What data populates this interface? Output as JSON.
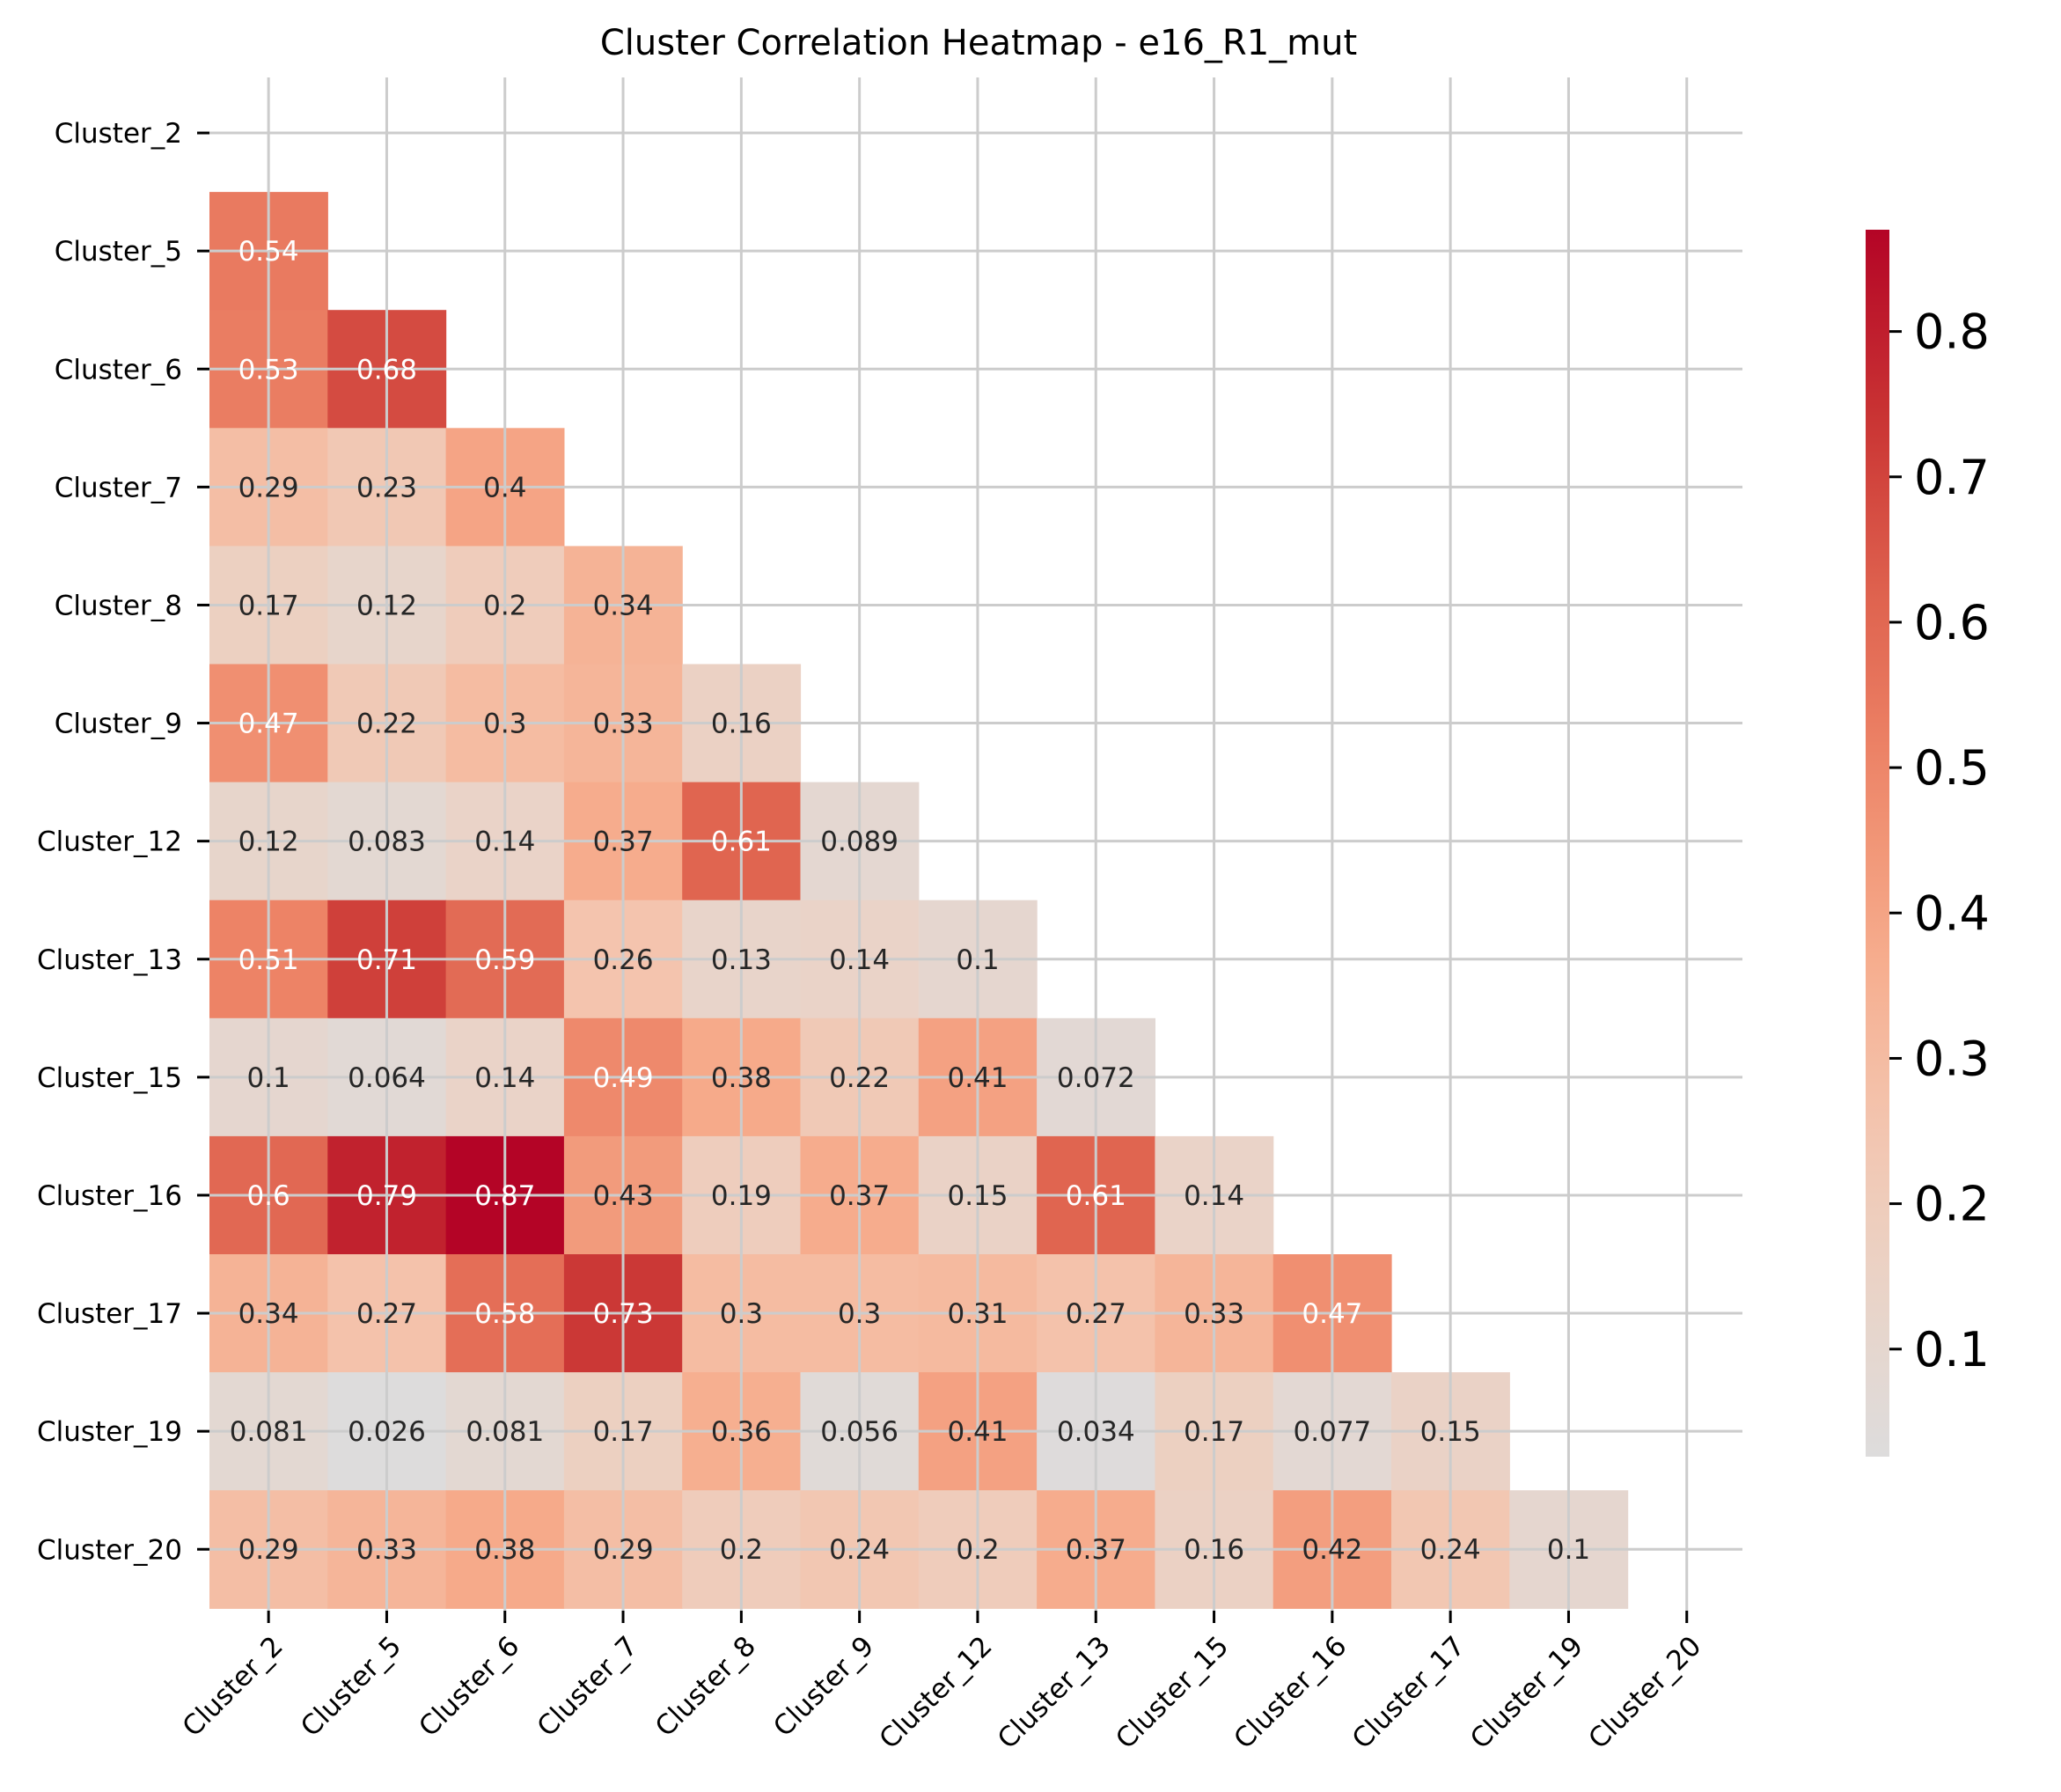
{
  "chart_data": {
    "type": "heatmap",
    "title": "Cluster Correlation Heatmap - e16_R1_mut",
    "xlabel": "",
    "ylabel": "",
    "rows": [
      "Cluster_2",
      "Cluster_5",
      "Cluster_6",
      "Cluster_7",
      "Cluster_8",
      "Cluster_9",
      "Cluster_12",
      "Cluster_13",
      "Cluster_15",
      "Cluster_16",
      "Cluster_17",
      "Cluster_19",
      "Cluster_20"
    ],
    "columns": [
      "Cluster_2",
      "Cluster_5",
      "Cluster_6",
      "Cluster_7",
      "Cluster_8",
      "Cluster_9",
      "Cluster_12",
      "Cluster_13",
      "Cluster_15",
      "Cluster_16",
      "Cluster_17",
      "Cluster_19",
      "Cluster_20"
    ],
    "mask": "upper-triangle-including-diagonal",
    "values": [
      [],
      [
        0.54
      ],
      [
        0.53,
        0.68
      ],
      [
        0.29,
        0.23,
        0.4
      ],
      [
        0.17,
        0.12,
        0.2,
        0.34
      ],
      [
        0.47,
        0.22,
        0.3,
        0.33,
        0.16
      ],
      [
        0.12,
        0.083,
        0.14,
        0.37,
        0.61,
        0.089
      ],
      [
        0.51,
        0.71,
        0.59,
        0.26,
        0.13,
        0.14,
        0.1
      ],
      [
        0.1,
        0.064,
        0.14,
        0.49,
        0.38,
        0.22,
        0.41,
        0.072
      ],
      [
        0.6,
        0.79,
        0.87,
        0.43,
        0.19,
        0.37,
        0.15,
        0.61,
        0.14
      ],
      [
        0.34,
        0.27,
        0.58,
        0.73,
        0.3,
        0.3,
        0.31,
        0.27,
        0.33,
        0.47
      ],
      [
        0.081,
        0.026,
        0.081,
        0.17,
        0.36,
        0.056,
        0.41,
        0.034,
        0.17,
        0.077,
        0.15
      ],
      [
        0.29,
        0.33,
        0.38,
        0.29,
        0.2,
        0.24,
        0.2,
        0.37,
        0.16,
        0.42,
        0.24,
        0.1
      ]
    ],
    "colormap": "coolwarm (upper half)",
    "color_low": "#dddcdc",
    "color_high": "#b40426",
    "vmin": 0.026,
    "vmax": 0.87,
    "colorbar_ticks": [
      0.1,
      0.2,
      0.3,
      0.4,
      0.5,
      0.6,
      0.7,
      0.8
    ],
    "colorbar_tick_labels": [
      "0.1",
      "0.2",
      "0.3",
      "0.4",
      "0.5",
      "0.6",
      "0.7",
      "0.8"
    ],
    "grid": true,
    "annotated": true
  }
}
